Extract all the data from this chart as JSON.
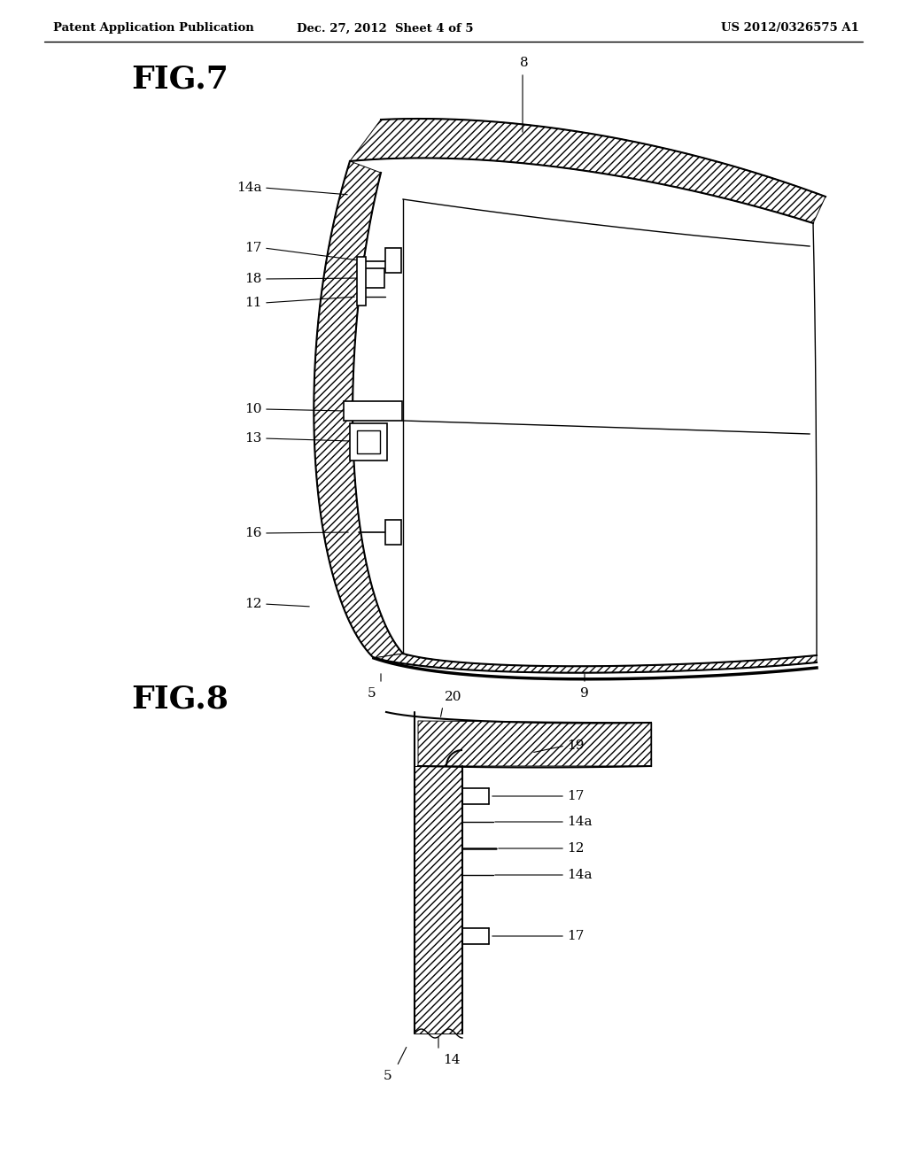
{
  "bg_color": "#ffffff",
  "line_color": "#000000",
  "header_left": "Patent Application Publication",
  "header_center": "Dec. 27, 2012  Sheet 4 of 5",
  "header_right": "US 2012/0326575 A1",
  "fig7_label": "FIG.7",
  "fig8_label": "FIG.8",
  "figsize": [
    10.24,
    13.2
  ],
  "dpi": 100
}
